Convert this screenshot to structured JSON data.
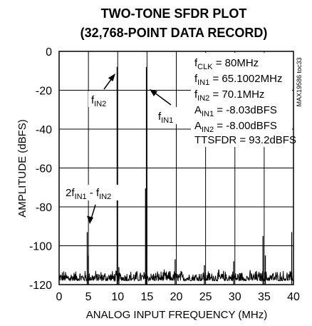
{
  "chart_data": {
    "type": "line",
    "title_line1": "TWO-TONE SFDR PLOT",
    "title_line2": "(32,768-POINT DATA RECORD)",
    "xlabel": "ANALOG INPUT FREQUENCY (MHz)",
    "ylabel": "AMPLITUDE (dBFS)",
    "xlim": [
      0,
      40
    ],
    "ylim": [
      -120,
      0
    ],
    "xticks": [
      "0",
      "5",
      "10",
      "15",
      "20",
      "25",
      "30",
      "35",
      "40"
    ],
    "yticks": [
      "0",
      "-20",
      "-40",
      "-60",
      "-80",
      "-100",
      "-120"
    ],
    "grid": true,
    "side_label": "MAX19586 toc33",
    "info": {
      "fclk": {
        "base": "f",
        "sub": "CLK",
        "rest": " = 80MHz"
      },
      "fin1": {
        "base": "f",
        "sub": "IN1",
        "rest": " = 65.1002MHz"
      },
      "fin2": {
        "base": "f",
        "sub": "IN2",
        "rest": " = 70.1MHz"
      },
      "ain1": {
        "base": "A",
        "sub": "IN1",
        "rest": " = -8.03dBFS"
      },
      "ain2": {
        "base": "A",
        "sub": "IN2",
        "rest": " = -8.00dBFS"
      },
      "ttsfdr": "TTSFDR = 93.2dBFS"
    },
    "annotations": {
      "fin2_label": {
        "base": "f",
        "sub": "IN2"
      },
      "fin1_label": {
        "base": "f",
        "sub": "IN1"
      },
      "imd_label": {
        "p1": "2f",
        "s1": "IN1",
        "p2": " - f",
        "s2": "IN2"
      }
    },
    "spurs": [
      {
        "x": 9.9,
        "y": -8.0
      },
      {
        "x": 14.9,
        "y": -8.03
      },
      {
        "x": 14.75,
        "y": -70.5
      },
      {
        "x": 4.8,
        "y": -93
      },
      {
        "x": 34.8,
        "y": -95
      },
      {
        "x": 39.7,
        "y": -93
      },
      {
        "x": 5.0,
        "y": -105
      },
      {
        "x": 19.8,
        "y": -107
      },
      {
        "x": 29.8,
        "y": -108
      },
      {
        "x": 24.8,
        "y": -110
      },
      {
        "x": 10.2,
        "y": -111
      },
      {
        "x": 35.2,
        "y": -105
      }
    ],
    "noise_floor_range": [
      -118,
      -112
    ]
  }
}
